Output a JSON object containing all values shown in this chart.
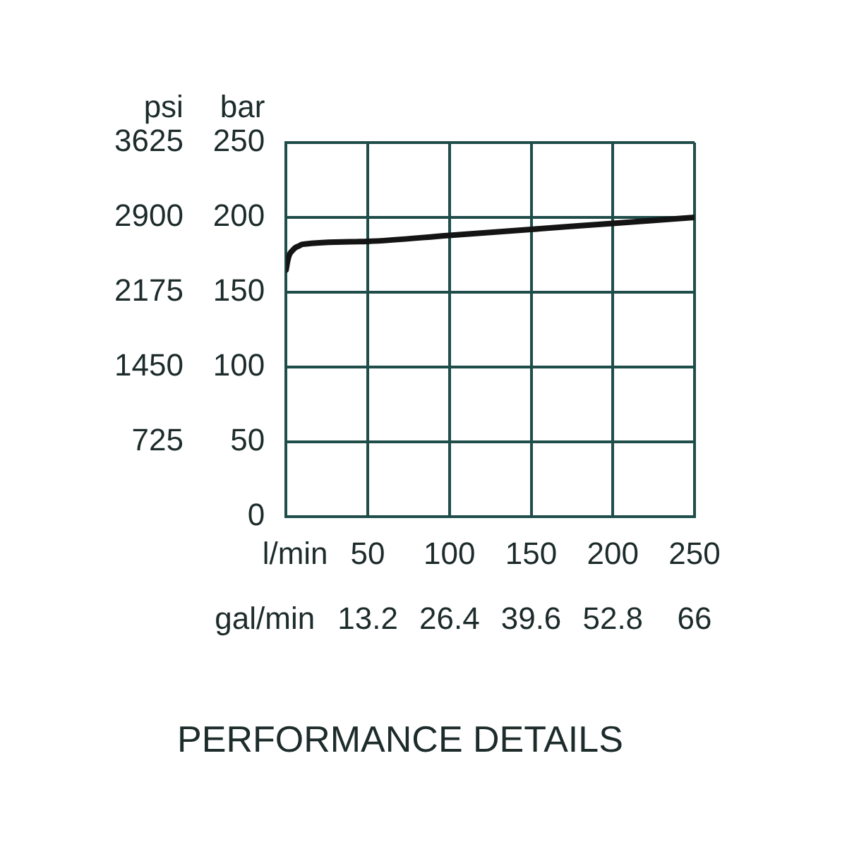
{
  "chart_data": {
    "type": "line",
    "title": "PERFORMANCE DETAILS",
    "xlabel": "l/min",
    "x2label": "gal/min",
    "ylabel": "bar",
    "y2label": "psi",
    "x": [
      0,
      1,
      2,
      4,
      6,
      8,
      10,
      50,
      100,
      150,
      200,
      250
    ],
    "series": [
      {
        "color": "#141414",
        "values": [
          165,
          171,
          175,
          178,
          180,
          181,
          182,
          184,
          188,
          192,
          196,
          200
        ]
      }
    ],
    "xlim": [
      0,
      250
    ],
    "xticks": [
      50,
      100,
      150,
      200,
      250
    ],
    "x2lim": [
      0,
      66
    ],
    "x2ticks": [
      13.2,
      26.4,
      39.6,
      52.8,
      66
    ],
    "ylim": [
      0,
      250
    ],
    "yticks": [
      0,
      50,
      100,
      150,
      200,
      250
    ],
    "y2lim": [
      0,
      3625
    ],
    "y2ticks": [
      725,
      1450,
      2175,
      2900,
      3625
    ],
    "grid": true,
    "marker": "none",
    "line_style": "solid"
  }
}
